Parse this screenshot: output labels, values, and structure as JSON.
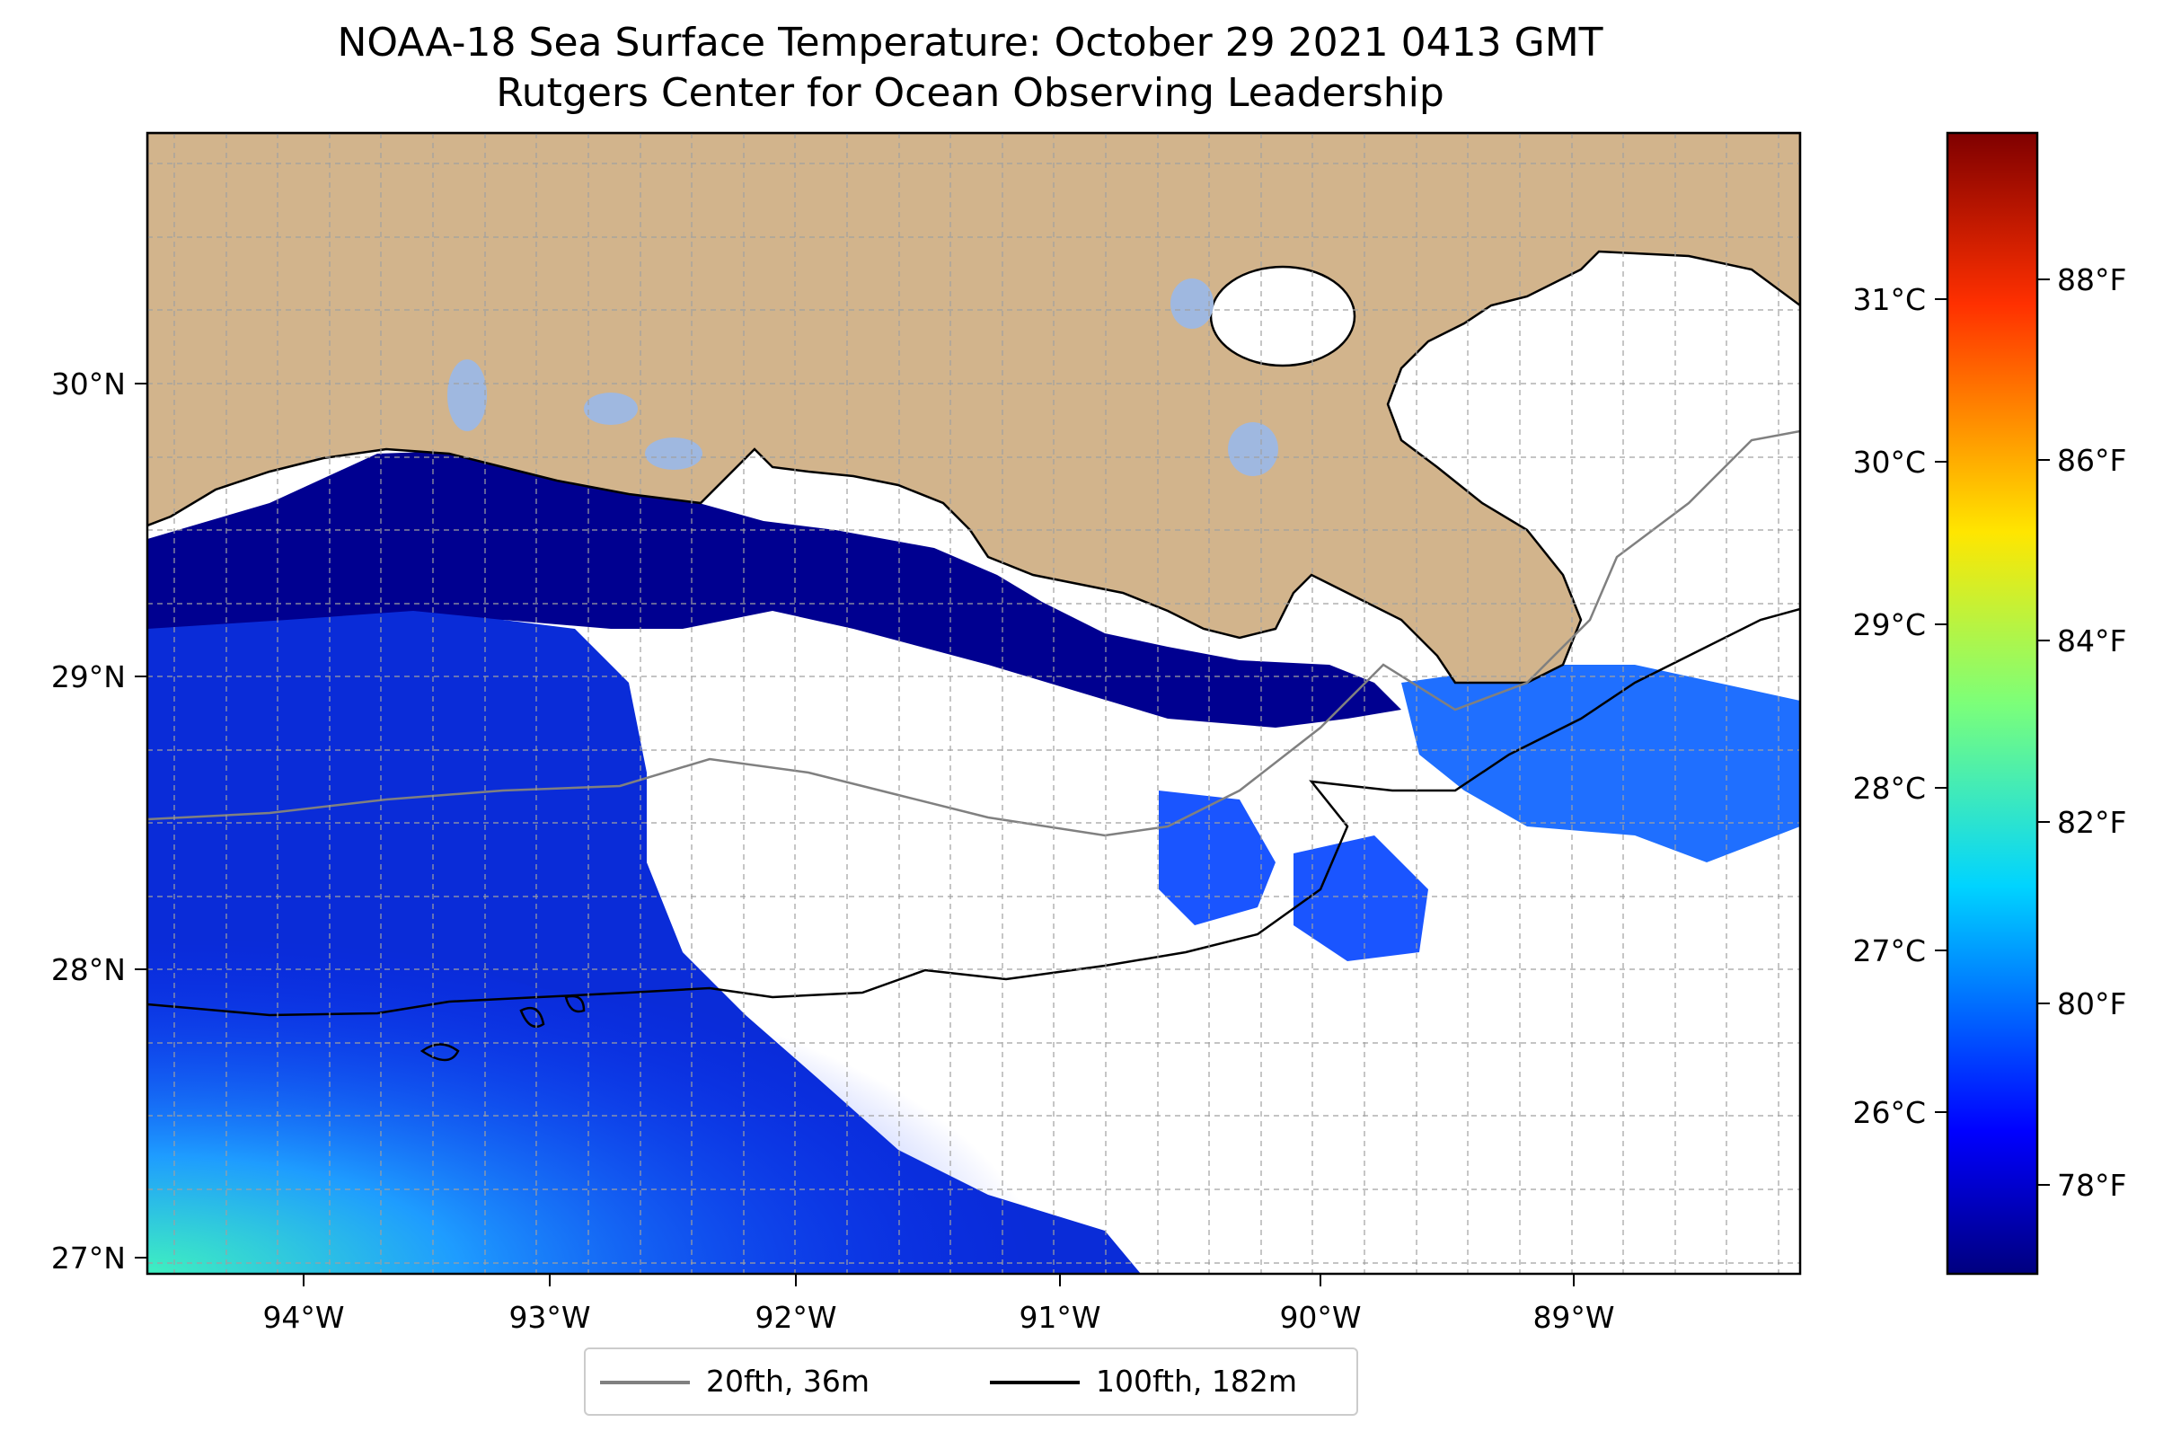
{
  "title": "NOAA-18 Sea Surface Temperature: October 29 2021 0413 GMT",
  "subtitle": "Rutgers Center for Ocean Observing Leadership",
  "map": {
    "lon_range": [
      -94.55,
      -88.18
    ],
    "lat_range": [
      26.94,
      30.85
    ],
    "land_color": "#d2b48c",
    "no_data_color": "#ffffff",
    "lon_ticks": [
      "94°W",
      "93°W",
      "92°W",
      "91°W",
      "90°W",
      "89°W"
    ],
    "lat_ticks": [
      "27°N",
      "28°N",
      "29°N",
      "30°N"
    ],
    "gridlines": true
  },
  "colorbar": {
    "colormap": "jet",
    "celsius_ticks": [
      "26°C",
      "27°C",
      "28°C",
      "29°C",
      "30°C",
      "31°C"
    ],
    "fahrenheit_ticks": [
      "78°F",
      "80°F",
      "82°F",
      "84°F",
      "86°F",
      "88°F"
    ],
    "range_f": [
      77.0,
      89.9
    ]
  },
  "legend": {
    "items": [
      {
        "label": "20fth, 36m",
        "color": "#808080"
      },
      {
        "label": "100fth, 182m",
        "color": "#000000"
      }
    ]
  }
}
